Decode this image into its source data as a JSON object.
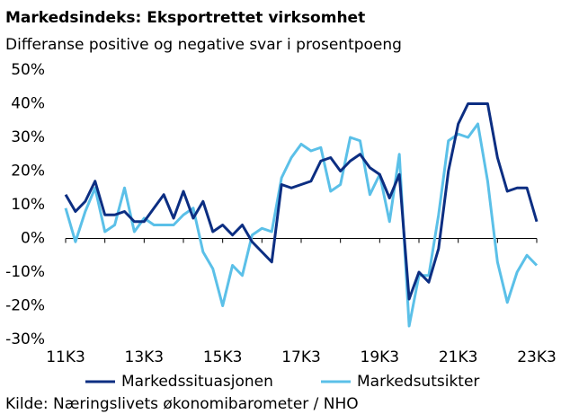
{
  "chart_data": {
    "type": "line",
    "title": "Markedsindeks:  Eksportrettet  virksomhet",
    "subtitle": "Differanse positive og negative svar i prosentpoeng",
    "source": "Kilde: Næringslivets økonomibarometer / NHO",
    "categories": [
      "11K3",
      null,
      null,
      null,
      null,
      null,
      null,
      null,
      "13K3",
      null,
      null,
      null,
      null,
      null,
      null,
      null,
      "15K3",
      null,
      null,
      null,
      null,
      null,
      null,
      null,
      "17K3",
      null,
      null,
      null,
      null,
      null,
      null,
      null,
      "19K3",
      null,
      null,
      null,
      null,
      null,
      null,
      null,
      "21K3",
      null,
      null,
      null,
      null,
      null,
      null,
      null,
      "23K3"
    ],
    "series": [
      {
        "name": "Markedssituasjonen",
        "color": "#0c2e82",
        "values": [
          13,
          8,
          11,
          17,
          7,
          7,
          8,
          5,
          5,
          9,
          13,
          6,
          14,
          6,
          11,
          2,
          4,
          1,
          4,
          -1,
          -4,
          -7,
          16,
          15,
          16,
          17,
          23,
          24,
          20,
          23,
          25,
          21,
          19,
          12,
          19,
          -18,
          -10,
          -13,
          -3,
          20,
          34,
          40,
          40,
          40,
          24,
          14,
          15,
          15,
          5
        ]
      },
      {
        "name": "Markedsutsikter",
        "color": "#5bc0e8",
        "values": [
          9,
          -1,
          8,
          15,
          2,
          4,
          15,
          2,
          6,
          4,
          4,
          4,
          7,
          9,
          -4,
          -9,
          -20,
          -8,
          -11,
          1,
          3,
          2,
          18,
          24,
          28,
          26,
          27,
          14,
          16,
          30,
          29,
          13,
          19,
          5,
          25,
          -26,
          -11,
          -11,
          7,
          29,
          31,
          30,
          34,
          17,
          -7,
          -19,
          -10,
          -5,
          -8
        ]
      }
    ],
    "ylim": [
      -30,
      50
    ],
    "yticks": [
      {
        "value": -30,
        "label": "-30%"
      },
      {
        "value": -20,
        "label": "-20%"
      },
      {
        "value": -10,
        "label": "-10%"
      },
      {
        "value": 0,
        "label": "0%"
      },
      {
        "value": 10,
        "label": "10%"
      },
      {
        "value": 20,
        "label": "20%"
      },
      {
        "value": 30,
        "label": "30%"
      },
      {
        "value": 40,
        "label": "40%"
      },
      {
        "value": 50,
        "label": "50%"
      }
    ]
  }
}
